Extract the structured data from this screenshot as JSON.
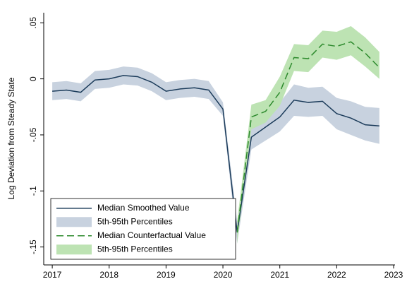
{
  "chart_data": {
    "type": "line",
    "y_label": "Log Deviation from Steady State",
    "x": [
      2017,
      2017.25,
      2017.5,
      2017.75,
      2018,
      2018.25,
      2018.5,
      2018.75,
      2019,
      2019.25,
      2019.5,
      2019.75,
      2020,
      2020.25,
      2020.5,
      2020.75,
      2021,
      2021.25,
      2021.5,
      2021.75,
      2022,
      2022.25,
      2022.5,
      2022.75
    ],
    "xlim": [
      2016.85,
      2023
    ],
    "xticks": [
      2017,
      2018,
      2019,
      2020,
      2021,
      2022,
      2023
    ],
    "ylim": [
      -0.166,
      0.059
    ],
    "yticks": [
      {
        "value": 0.05,
        "label": ".05"
      },
      0,
      {
        "value": -0.05,
        "label": "-.05"
      },
      {
        "value": -0.1,
        "label": "-.1"
      },
      {
        "value": -0.15,
        "label": "-.15"
      }
    ],
    "legend": "bottom-left",
    "series": [
      {
        "name": "Median Smoothed Value",
        "kind": "line",
        "color": "#1b3b5a",
        "dash": false,
        "values": [
          -0.011,
          -0.01,
          -0.012,
          -0.001,
          0.0,
          0.003,
          0.002,
          -0.003,
          -0.011,
          -0.009,
          -0.008,
          -0.01,
          -0.027,
          -0.137,
          -0.052,
          -0.043,
          -0.034,
          -0.019,
          -0.021,
          -0.02,
          -0.031,
          -0.035,
          -0.041,
          -0.042
        ]
      },
      {
        "name": "5th-95th Percentiles",
        "kind": "band",
        "color": "#c8d2df",
        "upper": [
          -0.003,
          -0.002,
          -0.004,
          0.007,
          0.008,
          0.011,
          0.01,
          0.005,
          -0.003,
          -0.001,
          0.0,
          -0.002,
          -0.021,
          -0.127,
          -0.041,
          -0.031,
          -0.021,
          -0.005,
          -0.008,
          -0.007,
          -0.017,
          -0.02,
          -0.025,
          -0.026
        ],
        "lower": [
          -0.019,
          -0.018,
          -0.02,
          -0.009,
          -0.008,
          -0.005,
          -0.006,
          -0.011,
          -0.019,
          -0.017,
          -0.016,
          -0.018,
          -0.033,
          -0.147,
          -0.063,
          -0.055,
          -0.047,
          -0.033,
          -0.034,
          -0.033,
          -0.045,
          -0.05,
          -0.055,
          -0.058
        ]
      },
      {
        "name": "Median Counterfactual Value",
        "kind": "line",
        "color": "#2e8b2e",
        "dash": true,
        "values": [
          null,
          null,
          null,
          null,
          null,
          null,
          null,
          null,
          null,
          null,
          null,
          null,
          null,
          -0.137,
          -0.034,
          -0.029,
          -0.012,
          0.019,
          0.018,
          0.031,
          0.029,
          0.033,
          0.023,
          0.01
        ]
      },
      {
        "name": "5th-95th Percentiles",
        "kind": "band",
        "color": "#bde3b3",
        "upper": [
          null,
          null,
          null,
          null,
          null,
          null,
          null,
          null,
          null,
          null,
          null,
          null,
          null,
          -0.127,
          -0.023,
          -0.019,
          0.002,
          0.031,
          0.03,
          0.043,
          0.042,
          0.047,
          0.037,
          0.024
        ],
        "lower": [
          null,
          null,
          null,
          null,
          null,
          null,
          null,
          null,
          null,
          null,
          null,
          null,
          null,
          -0.147,
          -0.045,
          -0.039,
          -0.024,
          0.007,
          0.006,
          0.019,
          0.017,
          0.021,
          0.011,
          0.0
        ]
      }
    ]
  }
}
